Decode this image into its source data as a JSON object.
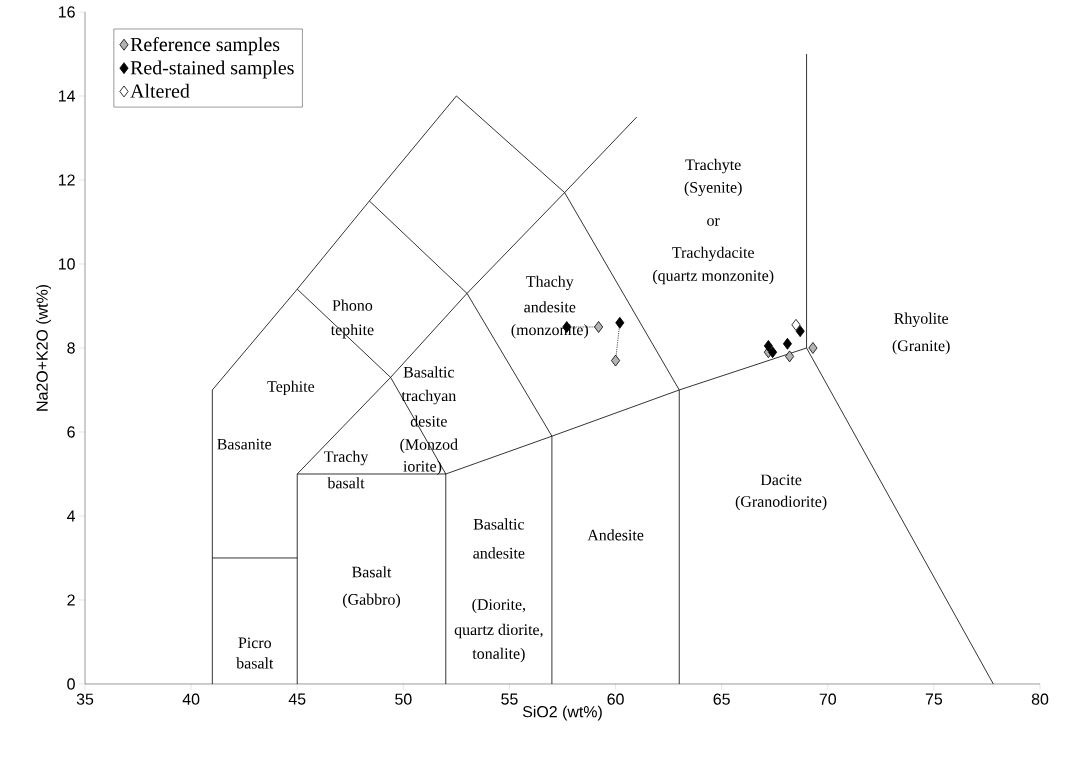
{
  "chart_data": {
    "type": "scatter",
    "xlabel": "SiO2 (wt%)",
    "ylabel": "Na2O+K2O (wt%)",
    "xlim": [
      35,
      80
    ],
    "ylim": [
      0,
      16
    ],
    "xticks": [
      35,
      40,
      45,
      50,
      55,
      60,
      65,
      70,
      75,
      80
    ],
    "yticks": [
      0,
      2,
      4,
      6,
      8,
      10,
      12,
      14,
      16
    ],
    "legend": "top left",
    "marker": "diamond",
    "line_style": "solid",
    "series": [
      {
        "type": "line",
        "marker": "none",
        "color": "#000000",
        "x": [
          41,
          41,
          45,
          48.4,
          52.5,
          57.6,
          61
        ],
        "values": [
          0,
          7,
          9.4,
          11.5,
          14,
          11.7,
          13.5
        ]
      },
      {
        "type": "line",
        "marker": "none",
        "color": "#000000",
        "x": [
          41,
          45
        ],
        "values": [
          3,
          3
        ]
      },
      {
        "type": "line",
        "marker": "none",
        "color": "#000000",
        "x": [
          45,
          45
        ],
        "values": [
          0,
          5
        ]
      },
      {
        "type": "line",
        "marker": "none",
        "color": "#000000",
        "x": [
          45,
          52,
          52
        ],
        "values": [
          5,
          5,
          0
        ]
      },
      {
        "type": "line",
        "marker": "none",
        "color": "#000000",
        "x": [
          45,
          49.4,
          52
        ],
        "values": [
          5,
          7.3,
          5
        ]
      },
      {
        "type": "line",
        "marker": "none",
        "color": "#000000",
        "x": [
          45,
          49.4,
          53,
          57.6
        ],
        "values": [
          9.4,
          7.3,
          9.3,
          11.7
        ]
      },
      {
        "type": "line",
        "marker": "none",
        "color": "#000000",
        "x": [
          48.4,
          53,
          57,
          57
        ],
        "values": [
          11.5,
          9.3,
          5.9,
          0
        ]
      },
      {
        "type": "line",
        "marker": "none",
        "color": "#000000",
        "x": [
          52,
          57,
          63,
          69,
          69
        ],
        "values": [
          5,
          5.9,
          7,
          8,
          15
        ]
      },
      {
        "type": "line",
        "marker": "none",
        "color": "#000000",
        "x": [
          57.6,
          63,
          63
        ],
        "values": [
          11.7,
          7,
          0
        ]
      },
      {
        "type": "line",
        "marker": "none",
        "color": "#000000",
        "x": [
          69,
          77.8
        ],
        "values": [
          8,
          0
        ]
      },
      {
        "type": "line",
        "marker": "none",
        "color": "#000000",
        "line_style": "dotted",
        "x": [
          59.2,
          57.7
        ],
        "values": [
          8.5,
          8.5
        ]
      },
      {
        "type": "line",
        "marker": "none",
        "color": "#000000",
        "line_style": "dotted",
        "x": [
          60.0,
          60.2
        ],
        "values": [
          7.7,
          8.6
        ]
      },
      {
        "name": "Reference samples",
        "color": "#b3b3b3",
        "x": [
          59.2,
          60.0,
          67.2,
          68.2,
          69.3
        ],
        "values": [
          8.5,
          7.7,
          7.9,
          7.8,
          8.0
        ]
      },
      {
        "name": "Red-stained samples",
        "color": "#000000",
        "x": [
          57.7,
          60.2,
          67.2,
          67.4,
          68.1,
          68.7
        ],
        "values": [
          8.5,
          8.6,
          8.05,
          7.9,
          8.1,
          8.4
        ]
      },
      {
        "name": "Altered",
        "color": "#ffffff",
        "x": [
          68.5
        ],
        "values": [
          8.55
        ]
      }
    ],
    "annotations": [
      "Picro",
      "basalt",
      "Basalt",
      "(Gabbro)",
      "Basaltic",
      "andesite",
      "(Diorite,",
      "quartz diorite,",
      "tonalite)",
      "Andesite",
      "Dacite",
      "(Granodiorite)",
      "Rhyolite",
      "(Granite)",
      "Basanite",
      "Tephite",
      "Trachy",
      "basalt",
      "Phono",
      "tephite",
      "Basaltic",
      "trachyan",
      "desite",
      "(Monzod",
      "iorite)",
      "Thachy",
      "andesite",
      "(monzonite)",
      "Trachyte",
      "(Syenite)",
      "or",
      "Trachydacite",
      "(quartz monzonite)"
    ]
  }
}
